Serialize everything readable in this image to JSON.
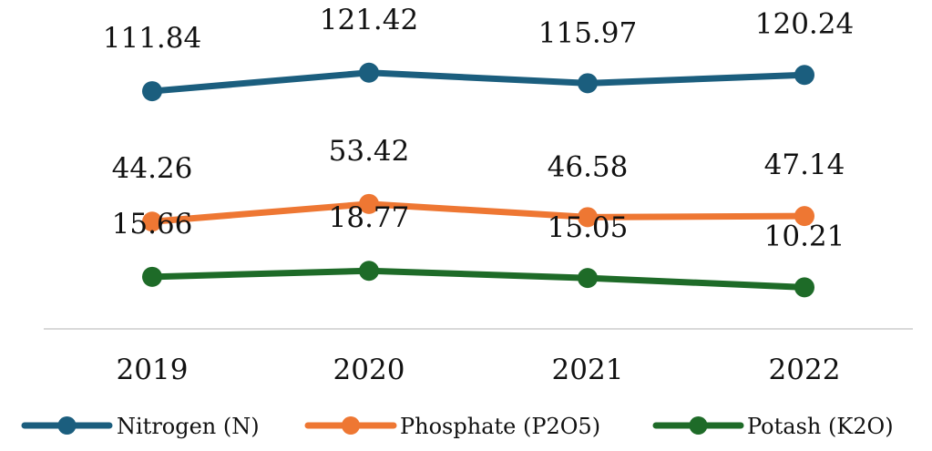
{
  "chart_data": {
    "type": "line",
    "title": "",
    "xlabel": "",
    "ylabel": "",
    "categories": [
      "2019",
      "2020",
      "2021",
      "2022"
    ],
    "ylim": [
      0,
      130
    ],
    "grid": false,
    "legend_position": "bottom",
    "series": [
      {
        "name": "Nitrogen (N)",
        "color": "#1b5e7e",
        "values": [
          111.84,
          121.42,
          115.97,
          120.24
        ],
        "labels": [
          "111.84",
          "121.42",
          "115.97",
          "120.24"
        ]
      },
      {
        "name": "Phosphate (P2O5)",
        "color": "#ee7733",
        "values": [
          44.26,
          53.42,
          46.58,
          47.14
        ],
        "labels": [
          "44.26",
          "53.42",
          "46.58",
          "47.14"
        ]
      },
      {
        "name": "Potash (K2O)",
        "color": "#1e6b28",
        "values": [
          15.66,
          18.77,
          15.05,
          10.21
        ],
        "labels": [
          "15.66",
          "18.77",
          "15.05",
          "10.21"
        ]
      }
    ]
  }
}
